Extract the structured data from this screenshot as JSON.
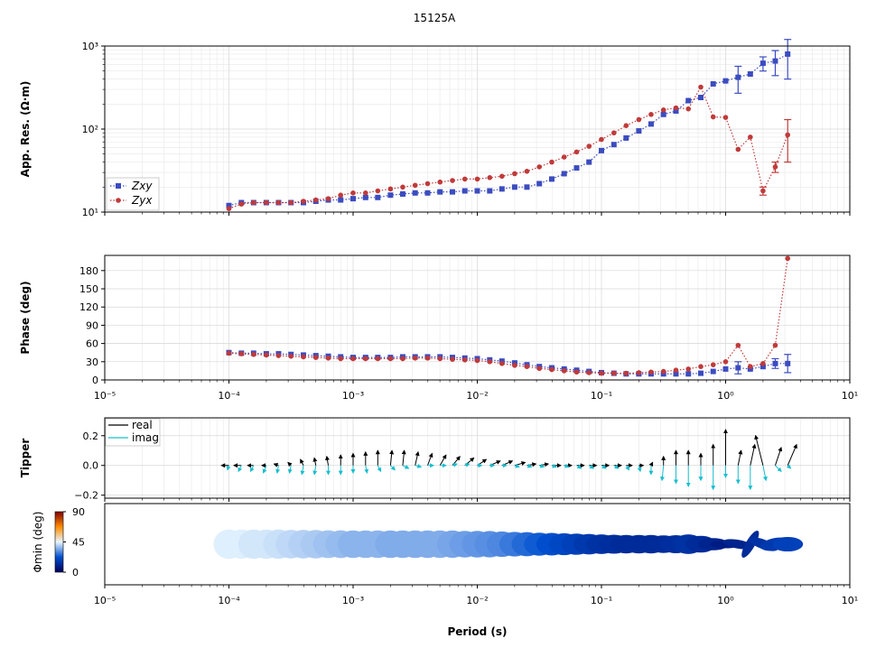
{
  "chart_data": [
    {
      "type": "line",
      "title": "15125A",
      "ylabel": "App. Res. (Ω·m)",
      "log_y": true,
      "grid": true,
      "legend": "lower left",
      "xlim": [
        1e-05,
        10
      ],
      "ylim": [
        10,
        1000
      ],
      "yticks": [
        {
          "value": 10,
          "label": "10¹"
        },
        {
          "value": 100,
          "label": "10²"
        },
        {
          "value": 1000,
          "label": "10³"
        }
      ],
      "x": [
        0.0001,
        0.000126,
        0.000158,
        0.0002,
        0.000251,
        0.000316,
        0.000398,
        0.000501,
        0.000631,
        0.000794,
        0.001,
        0.00126,
        0.00158,
        0.002,
        0.00251,
        0.00316,
        0.00398,
        0.00501,
        0.00631,
        0.00794,
        0.01,
        0.0126,
        0.0158,
        0.02,
        0.0251,
        0.0316,
        0.0398,
        0.0501,
        0.0631,
        0.0794,
        0.1,
        0.126,
        0.158,
        0.2,
        0.251,
        0.316,
        0.398,
        0.501,
        0.631,
        0.794,
        1,
        1.26,
        1.58,
        2,
        2.51,
        3.16
      ],
      "series": [
        {
          "name": "Zxy",
          "color": "#3b4cc0",
          "marker": "square",
          "values": [
            12,
            13,
            13,
            13,
            13,
            13,
            13,
            13.5,
            14,
            14,
            14.5,
            15,
            15,
            16,
            16.5,
            17,
            17,
            17.5,
            17.5,
            18,
            18,
            18,
            19,
            20,
            20,
            22,
            25,
            29,
            34,
            40,
            55,
            65,
            78,
            95,
            115,
            150,
            165,
            220,
            240,
            350,
            380,
            420,
            460,
            620,
            660,
            800
          ],
          "errors": [
            null,
            null,
            null,
            null,
            null,
            null,
            null,
            null,
            null,
            null,
            null,
            null,
            null,
            null,
            null,
            null,
            null,
            null,
            null,
            null,
            null,
            null,
            null,
            null,
            null,
            null,
            null,
            null,
            null,
            null,
            null,
            null,
            null,
            null,
            null,
            null,
            null,
            null,
            null,
            null,
            null,
            150,
            null,
            120,
            220,
            400
          ]
        },
        {
          "name": "Zyx",
          "color": "#c03a3a",
          "marker": "circle",
          "values": [
            11,
            12.5,
            13,
            13,
            13,
            13,
            13.5,
            14,
            14.5,
            16,
            17,
            17,
            18,
            19,
            20,
            21,
            22,
            23,
            24,
            25,
            25,
            26,
            27,
            29,
            31,
            35,
            40,
            46,
            53,
            62,
            75,
            90,
            110,
            130,
            150,
            170,
            180,
            175,
            320,
            140,
            138,
            57,
            80,
            18,
            35,
            85
          ],
          "errors": [
            null,
            null,
            null,
            null,
            null,
            null,
            null,
            null,
            null,
            null,
            null,
            null,
            null,
            null,
            null,
            null,
            null,
            null,
            null,
            null,
            null,
            null,
            null,
            null,
            null,
            null,
            null,
            null,
            null,
            null,
            null,
            null,
            null,
            null,
            null,
            null,
            null,
            null,
            null,
            null,
            null,
            null,
            null,
            2,
            5,
            45
          ]
        }
      ]
    },
    {
      "type": "line",
      "ylabel": "Phase (deg)",
      "grid": true,
      "xlim": [
        1e-05,
        10
      ],
      "ylim": [
        0,
        205
      ],
      "yticks": [
        0,
        30,
        60,
        90,
        120,
        150,
        180
      ],
      "xticks": [
        {
          "value": 1e-05,
          "label": "10⁻⁵"
        },
        {
          "value": 0.0001,
          "label": "10⁻⁴"
        },
        {
          "value": 0.001,
          "label": "10⁻³"
        },
        {
          "value": 0.01,
          "label": "10⁻²"
        },
        {
          "value": 0.1,
          "label": "10⁻¹"
        },
        {
          "value": 1,
          "label": "10⁰"
        },
        {
          "value": 10,
          "label": "10¹"
        }
      ],
      "x": [
        0.0001,
        0.000126,
        0.000158,
        0.0002,
        0.000251,
        0.000316,
        0.000398,
        0.000501,
        0.000631,
        0.000794,
        0.001,
        0.00126,
        0.00158,
        0.002,
        0.00251,
        0.00316,
        0.00398,
        0.00501,
        0.00631,
        0.00794,
        0.01,
        0.0126,
        0.0158,
        0.02,
        0.0251,
        0.0316,
        0.0398,
        0.0501,
        0.0631,
        0.0794,
        0.1,
        0.126,
        0.158,
        0.2,
        0.251,
        0.316,
        0.398,
        0.501,
        0.631,
        0.794,
        1,
        1.26,
        1.58,
        2,
        2.51,
        3.16
      ],
      "series": [
        {
          "color": "#3b4cc0",
          "marker": "square",
          "values": [
            45,
            44,
            44,
            43,
            43,
            42,
            41,
            40,
            39,
            38,
            37,
            37,
            37,
            37,
            38,
            38,
            38,
            38,
            37,
            36,
            35,
            33,
            31,
            28,
            25,
            22,
            20,
            18,
            16,
            14,
            12,
            11,
            10,
            10,
            10,
            10,
            10,
            10,
            11,
            14,
            18,
            20,
            18,
            22,
            27,
            27
          ],
          "errors": [
            null,
            null,
            null,
            null,
            null,
            null,
            null,
            null,
            null,
            null,
            null,
            null,
            null,
            null,
            null,
            null,
            null,
            null,
            null,
            null,
            null,
            null,
            null,
            null,
            null,
            null,
            null,
            null,
            null,
            null,
            null,
            null,
            null,
            null,
            null,
            null,
            null,
            null,
            null,
            null,
            null,
            10,
            null,
            null,
            8,
            15
          ]
        },
        {
          "color": "#c03a3a",
          "marker": "circle",
          "values": [
            44,
            43,
            42,
            41,
            40,
            39,
            38,
            37,
            36,
            35,
            35,
            35,
            35,
            35,
            35,
            36,
            36,
            35,
            34,
            33,
            32,
            30,
            27,
            24,
            22,
            19,
            17,
            15,
            13,
            12,
            11,
            11,
            11,
            12,
            13,
            14,
            16,
            18,
            22,
            25,
            30,
            57,
            22,
            27,
            57,
            200
          ]
        }
      ]
    },
    {
      "type": "arrows",
      "ylabel": "Tipper",
      "grid": true,
      "legend": "upper left",
      "xlim": [
        1e-05,
        10
      ],
      "ylim": [
        -0.22,
        0.32
      ],
      "yticks": [
        {
          "value": -0.2,
          "label": "−0.2"
        },
        {
          "value": 0,
          "label": "0.0"
        },
        {
          "value": 0.2,
          "label": "0.2"
        }
      ],
      "x": [
        0.0001,
        0.000126,
        0.000158,
        0.0002,
        0.000251,
        0.000316,
        0.000398,
        0.000501,
        0.000631,
        0.000794,
        0.001,
        0.00126,
        0.00158,
        0.002,
        0.00251,
        0.00316,
        0.00398,
        0.00501,
        0.00631,
        0.00794,
        0.01,
        0.0126,
        0.0158,
        0.02,
        0.0251,
        0.0316,
        0.0398,
        0.0501,
        0.0631,
        0.0794,
        0.1,
        0.126,
        0.158,
        0.2,
        0.251,
        0.316,
        0.398,
        0.501,
        0.631,
        0.794,
        1,
        1.26,
        1.58,
        2,
        2.51,
        3.16
      ],
      "series": [
        {
          "name": "real",
          "color": "#000000",
          "x_component": [
            -0.05,
            -0.05,
            -0.04,
            -0.03,
            -0.03,
            -0.02,
            -0.02,
            -0.01,
            -0.01,
            0,
            0,
            0,
            0,
            0.01,
            0.01,
            0.02,
            0.03,
            0.04,
            0.05,
            0.06,
            0.06,
            0.07,
            0.07,
            0.07,
            0.06,
            0.06,
            0.06,
            0.05,
            0.05,
            0.05,
            0.05,
            0.05,
            0.04,
            0.03,
            0.01,
            0,
            0,
            0,
            0,
            0,
            0,
            0.02,
            0.03,
            -0.05,
            0.04,
            0.06
          ],
          "values": [
            0,
            0,
            0,
            0,
            0.01,
            0.02,
            0.04,
            0.05,
            0.06,
            0.07,
            0.08,
            0.09,
            0.1,
            0.1,
            0.1,
            0.09,
            0.08,
            0.07,
            0.06,
            0.05,
            0.04,
            0.03,
            0.03,
            0.02,
            0.01,
            0.01,
            0,
            0,
            0,
            0,
            0,
            0,
            0,
            0,
            0.02,
            0.06,
            0.1,
            0.1,
            0.08,
            0.14,
            0.24,
            0.1,
            0.14,
            0.2,
            0.12,
            0.14
          ]
        },
        {
          "name": "imag",
          "color": "#17becf",
          "x_component": [
            -0.01,
            -0.02,
            -0.02,
            -0.02,
            -0.01,
            -0.01,
            -0.01,
            -0.01,
            0,
            0,
            0,
            0.01,
            0.02,
            0.03,
            0.04,
            0.04,
            0.04,
            0.04,
            0.03,
            0.03,
            0.03,
            0.03,
            0.03,
            0.03,
            0.03,
            0.03,
            0.03,
            0.03,
            0.03,
            0.03,
            0.03,
            0.03,
            0.02,
            0.01,
            0,
            -0.01,
            0,
            0,
            0,
            0,
            0,
            0,
            0,
            0.02,
            0.04,
            0.02
          ],
          "values": [
            -0.03,
            -0.04,
            -0.04,
            -0.05,
            -0.05,
            -0.05,
            -0.06,
            -0.06,
            -0.06,
            -0.06,
            -0.05,
            -0.05,
            -0.04,
            -0.03,
            -0.02,
            -0.01,
            0,
            0,
            0.01,
            0.01,
            0,
            0,
            0,
            -0.01,
            -0.01,
            -0.01,
            -0.01,
            -0.01,
            -0.02,
            -0.02,
            -0.02,
            -0.02,
            -0.03,
            -0.04,
            -0.06,
            -0.1,
            -0.12,
            -0.14,
            -0.1,
            -0.16,
            -0.08,
            -0.12,
            -0.16,
            -0.1,
            -0.04,
            -0.02
          ]
        }
      ]
    },
    {
      "type": "ellipse",
      "xlabel": "Period (s)",
      "colorbar_label": "Φmin (deg)",
      "xlim": [
        1e-05,
        10
      ],
      "clim": [
        0,
        90
      ],
      "cticks": [
        0,
        45,
        90
      ],
      "colormap": [
        "#00005a",
        "#0050d0",
        "#e8f6ff",
        "#ff8c00",
        "#800000"
      ],
      "xticks": [
        {
          "value": 1e-05,
          "label": "10⁻⁵"
        },
        {
          "value": 0.0001,
          "label": "10⁻⁴"
        },
        {
          "value": 0.001,
          "label": "10⁻³"
        },
        {
          "value": 0.01,
          "label": "10⁻²"
        },
        {
          "value": 0.1,
          "label": "10⁻¹"
        },
        {
          "value": 1,
          "label": "10⁰"
        },
        {
          "value": 10,
          "label": "10¹"
        }
      ],
      "x": [
        0.0001,
        0.000126,
        0.000158,
        0.0002,
        0.000251,
        0.000316,
        0.000398,
        0.000501,
        0.000631,
        0.000794,
        0.001,
        0.00126,
        0.00158,
        0.002,
        0.00251,
        0.00316,
        0.00398,
        0.00501,
        0.00631,
        0.00794,
        0.01,
        0.0126,
        0.0158,
        0.02,
        0.0251,
        0.0316,
        0.0398,
        0.0501,
        0.0631,
        0.0794,
        0.1,
        0.126,
        0.158,
        0.2,
        0.251,
        0.316,
        0.398,
        0.501,
        0.631,
        0.794,
        1,
        1.26,
        1.58,
        2,
        2.51,
        3.16
      ],
      "phimin": [
        44,
        44,
        43,
        43,
        42,
        41,
        40,
        39,
        38,
        37,
        36,
        36,
        36,
        35,
        35,
        35,
        35,
        35,
        34,
        33,
        32,
        31,
        30,
        28,
        26,
        24,
        22,
        20,
        18,
        16,
        14,
        13,
        12,
        12,
        12,
        12,
        13,
        14,
        12,
        10,
        8,
        10,
        12,
        14,
        16,
        18
      ],
      "phimax": [
        46,
        46,
        45,
        45,
        44,
        44,
        43,
        42,
        42,
        41,
        40,
        40,
        40,
        39,
        39,
        39,
        39,
        39,
        38,
        38,
        37,
        36,
        36,
        35,
        33,
        32,
        30,
        28,
        26,
        24,
        22,
        21,
        20,
        20,
        20,
        21,
        22,
        22,
        22,
        25,
        30,
        35,
        40,
        45,
        40,
        38
      ],
      "azimuth": [
        0,
        0,
        0,
        0,
        0,
        0,
        0,
        0,
        0,
        0,
        0,
        0,
        0,
        0,
        0,
        0,
        0,
        0,
        0,
        0,
        0,
        0,
        0,
        0,
        0,
        0,
        0,
        0,
        0,
        0,
        0,
        0,
        0,
        0,
        0,
        0,
        0,
        0,
        0,
        0,
        0,
        10,
        -60,
        20,
        -10,
        0
      ]
    }
  ]
}
